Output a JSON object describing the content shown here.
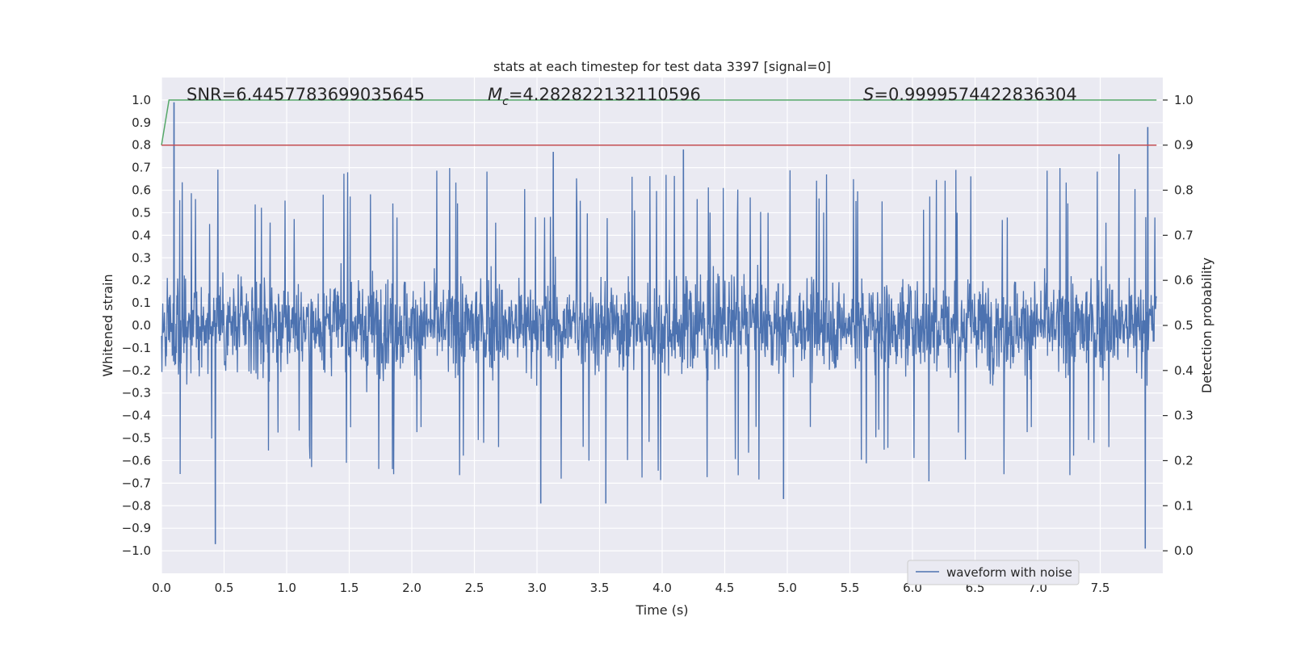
{
  "chart_data": {
    "type": "line",
    "title": "stats at each timestep for test data 3397 [signal=0]",
    "xlabel": "Time (s)",
    "ylabel": "Whitened strain",
    "ylabel_right": "Detection probability",
    "xlim": [
      0.0,
      8.0
    ],
    "ylim": [
      -1.1,
      1.1
    ],
    "ylim_right": [
      -0.05,
      1.05
    ],
    "x_ticks": [
      "0.0",
      "0.5",
      "1.0",
      "1.5",
      "2.0",
      "2.5",
      "3.0",
      "3.5",
      "4.0",
      "4.5",
      "5.0",
      "5.5",
      "6.0",
      "6.5",
      "7.0",
      "7.5"
    ],
    "y_ticks": [
      "1.0",
      "0.9",
      "0.8",
      "0.7",
      "0.6",
      "0.5",
      "0.4",
      "0.3",
      "0.2",
      "0.1",
      "0.0",
      "−0.1",
      "−0.2",
      "−0.3",
      "−0.4",
      "−0.5",
      "−0.6",
      "−0.7",
      "−0.8",
      "−0.9",
      "−1.0"
    ],
    "y_right_ticks": [
      "1.0",
      "0.9",
      "0.8",
      "0.7",
      "0.6",
      "0.5",
      "0.4",
      "0.3",
      "0.2",
      "0.1",
      "0.0"
    ],
    "annotations": {
      "snr": "SNR=6.4457783699035645",
      "mc_symbol": "M",
      "mc_sub": "c",
      "mc_value": "=4.282822132110596",
      "s_symbol": "S",
      "s_value": "=0.9999574422836304"
    },
    "legend": {
      "label": "waveform with noise",
      "placement": "lower-right"
    },
    "grid": true,
    "series": [
      {
        "name": "waveform with noise",
        "color": "#4c72b0",
        "axis": "left",
        "style": "dense noise, |strain| mostly < 0.5 with spikes up to ~1.0",
        "notable_peaks": [
          {
            "x": 0.1,
            "y": 0.99
          },
          {
            "x": 0.43,
            "y": -0.97
          },
          {
            "x": 3.13,
            "y": 0.77
          },
          {
            "x": 3.03,
            "y": -0.79
          },
          {
            "x": 3.55,
            "y": -0.79
          },
          {
            "x": 4.17,
            "y": 0.78
          },
          {
            "x": 4.97,
            "y": -0.77
          },
          {
            "x": 7.65,
            "y": 0.76
          },
          {
            "x": 7.88,
            "y": 0.88
          },
          {
            "x": 7.86,
            "y": -0.99
          }
        ]
      },
      {
        "color": "#55a868",
        "axis": "right",
        "x": [
          0.0,
          0.06,
          7.95
        ],
        "y": [
          0.9,
          1.0,
          1.0
        ]
      },
      {
        "color": "#c44e52",
        "axis": "right",
        "x": [
          0.0,
          7.95
        ],
        "y": [
          0.9,
          0.9
        ]
      }
    ]
  },
  "colors": {
    "plot_bg": "#eaeaf2",
    "grid": "#ffffff",
    "waveform": "#4c72b0",
    "probability": "#55a868",
    "threshold": "#c44e52"
  }
}
